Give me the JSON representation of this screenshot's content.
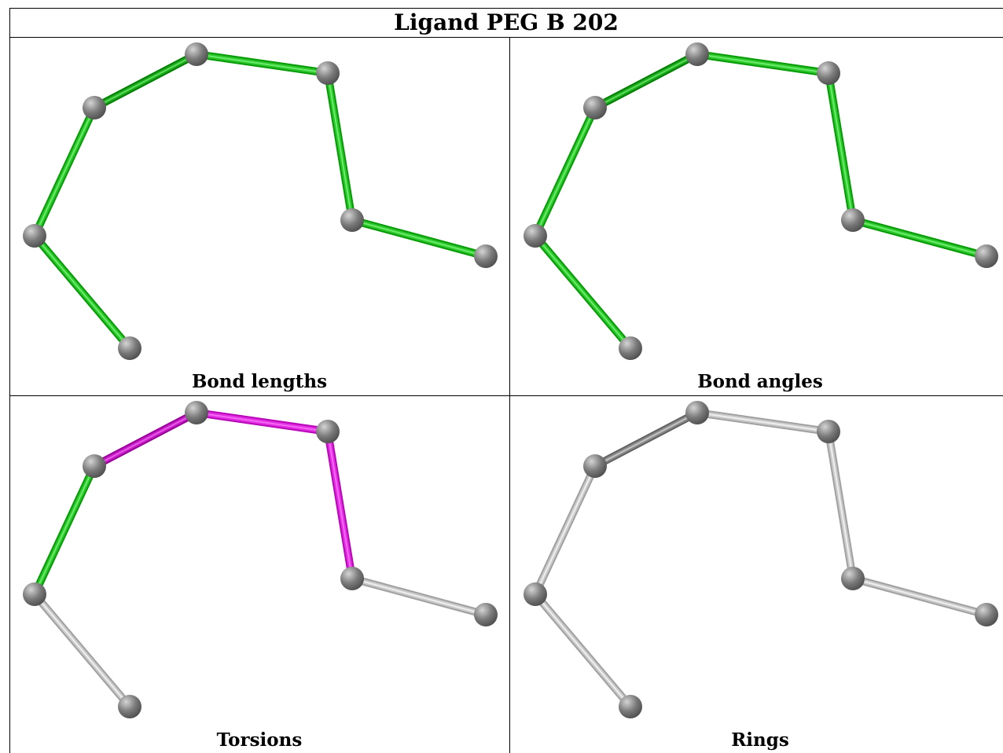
{
  "title": "Ligand PEG B 202",
  "panels": [
    {
      "caption": "Bond lengths",
      "bond_colors": [
        "#2ec42e",
        "#2ec42e",
        "#1fa81f",
        "#2ec42e",
        "#2ec42e",
        "#2ec42e",
        "#2ec42e"
      ]
    },
    {
      "caption": "Bond angles",
      "bond_colors": [
        "#2ec42e",
        "#2ec42e",
        "#1fa81f",
        "#2ec42e",
        "#2ec42e",
        "#2ec42e",
        "#2ec42e"
      ]
    },
    {
      "caption": "Torsions",
      "bond_colors": [
        "#c9c9c9",
        "#2ec42e",
        "#c21ec2",
        "#e02ee0",
        "#e02ee0",
        "#c9c9c9",
        "#c9c9c9"
      ]
    },
    {
      "caption": "Rings",
      "bond_colors": [
        "#c9c9c9",
        "#c9c9c9",
        "#8a8a8a",
        "#c9c9c9",
        "#c9c9c9",
        "#c9c9c9",
        "#c9c9c9"
      ]
    }
  ],
  "atom_color": "#7a7a7a"
}
